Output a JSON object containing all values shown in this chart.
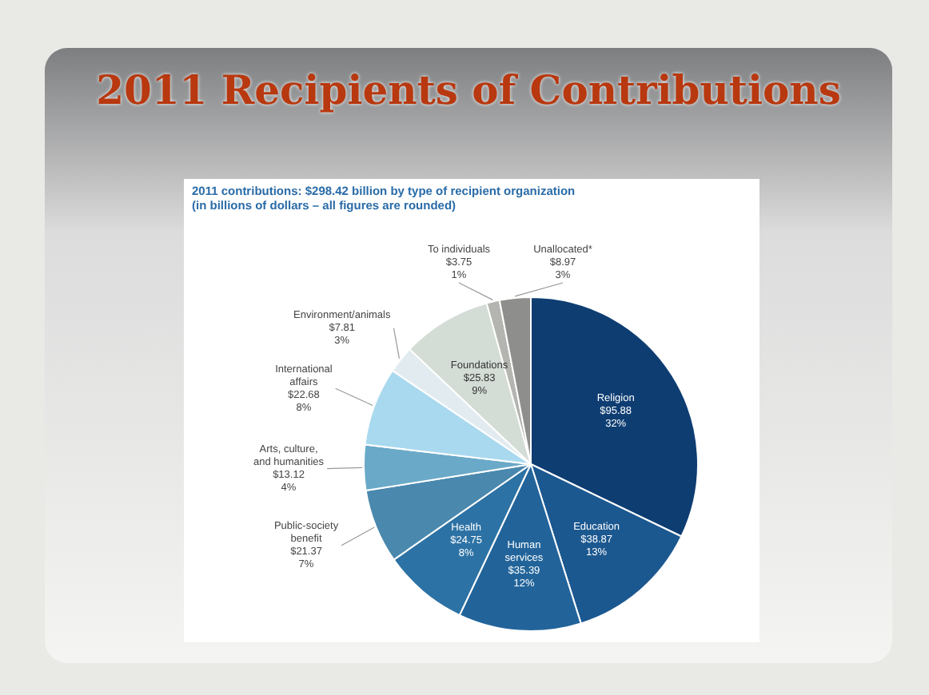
{
  "chart_data": {
    "type": "pie",
    "title": "2011 Recipients of Contributions",
    "subtitle": "2011 contributions: $298.42 billion by type of recipient organization",
    "annotations": [
      "(in billions of dollars – all figures are rounded)"
    ],
    "categories": [
      "Religion",
      "Education",
      "Human services",
      "Health",
      "Public-society benefit",
      "Arts, culture, and humanities",
      "International affairs",
      "Environment/animals",
      "Foundations",
      "To individuals",
      "Unallocated*"
    ],
    "values": [
      95.88,
      38.87,
      35.39,
      24.75,
      21.37,
      13.12,
      22.68,
      7.81,
      25.83,
      3.75,
      8.97
    ],
    "value_labels": [
      "$95.88 32%",
      "$38.87 13%",
      "$35.39 12%",
      "$24.75 8%",
      "$21.37 7%",
      "$13.12 4%",
      "$22.68 8%",
      "$7.81 3%",
      "$25.83 9%",
      "$3.75 1%",
      "$8.97 3%"
    ],
    "colors": [
      "#0e3d72",
      "#1c5890",
      "#22649a",
      "#2d72a4",
      "#4a88ae",
      "#6aa9c8",
      "#a9d9ef",
      "#e2ecf0",
      "#d4dcd6",
      "#b4b4b0",
      "#8e8e8c"
    ],
    "legend": false
  }
}
